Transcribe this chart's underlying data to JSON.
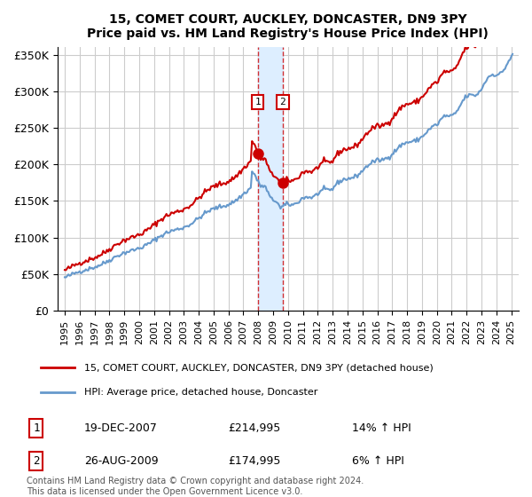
{
  "title": "15, COMET COURT, AUCKLEY, DONCASTER, DN9 3PY",
  "subtitle": "Price paid vs. HM Land Registry's House Price Index (HPI)",
  "legend_line1": "15, COMET COURT, AUCKLEY, DONCASTER, DN9 3PY (detached house)",
  "legend_line2": "HPI: Average price, detached house, Doncaster",
  "footnote": "Contains HM Land Registry data © Crown copyright and database right 2024.\nThis data is licensed under the Open Government Licence v3.0.",
  "transaction1_label": "1",
  "transaction1_date": "19-DEC-2007",
  "transaction1_price": "£214,995",
  "transaction1_hpi": "14% ↑ HPI",
  "transaction2_label": "2",
  "transaction2_date": "26-AUG-2009",
  "transaction2_price": "£174,995",
  "transaction2_hpi": "6% ↑ HPI",
  "transaction1_x": 2007.97,
  "transaction2_x": 2009.65,
  "vline1_x": 2007.97,
  "vline2_x": 2009.65,
  "highlight_x1": 2007.97,
  "highlight_x2": 2009.65,
  "ylim_min": 0,
  "ylim_max": 360000,
  "xlim_min": 1994.5,
  "xlim_max": 2025.5,
  "red_color": "#cc0000",
  "blue_color": "#6699cc",
  "background_color": "#ffffff",
  "grid_color": "#cccccc",
  "highlight_color": "#ddeeff",
  "marker1_y": 214995,
  "marker2_y": 174995,
  "yticks": [
    0,
    50000,
    100000,
    150000,
    200000,
    250000,
    300000,
    350000
  ],
  "ytick_labels": [
    "£0",
    "£50K",
    "£100K",
    "£150K",
    "£200K",
    "£250K",
    "£300K",
    "£350K"
  ],
  "xticks": [
    1995,
    1996,
    1997,
    1998,
    1999,
    2000,
    2001,
    2002,
    2003,
    2004,
    2005,
    2006,
    2007,
    2008,
    2009,
    2010,
    2011,
    2012,
    2013,
    2014,
    2015,
    2016,
    2017,
    2018,
    2019,
    2020,
    2021,
    2022,
    2023,
    2024,
    2025
  ]
}
